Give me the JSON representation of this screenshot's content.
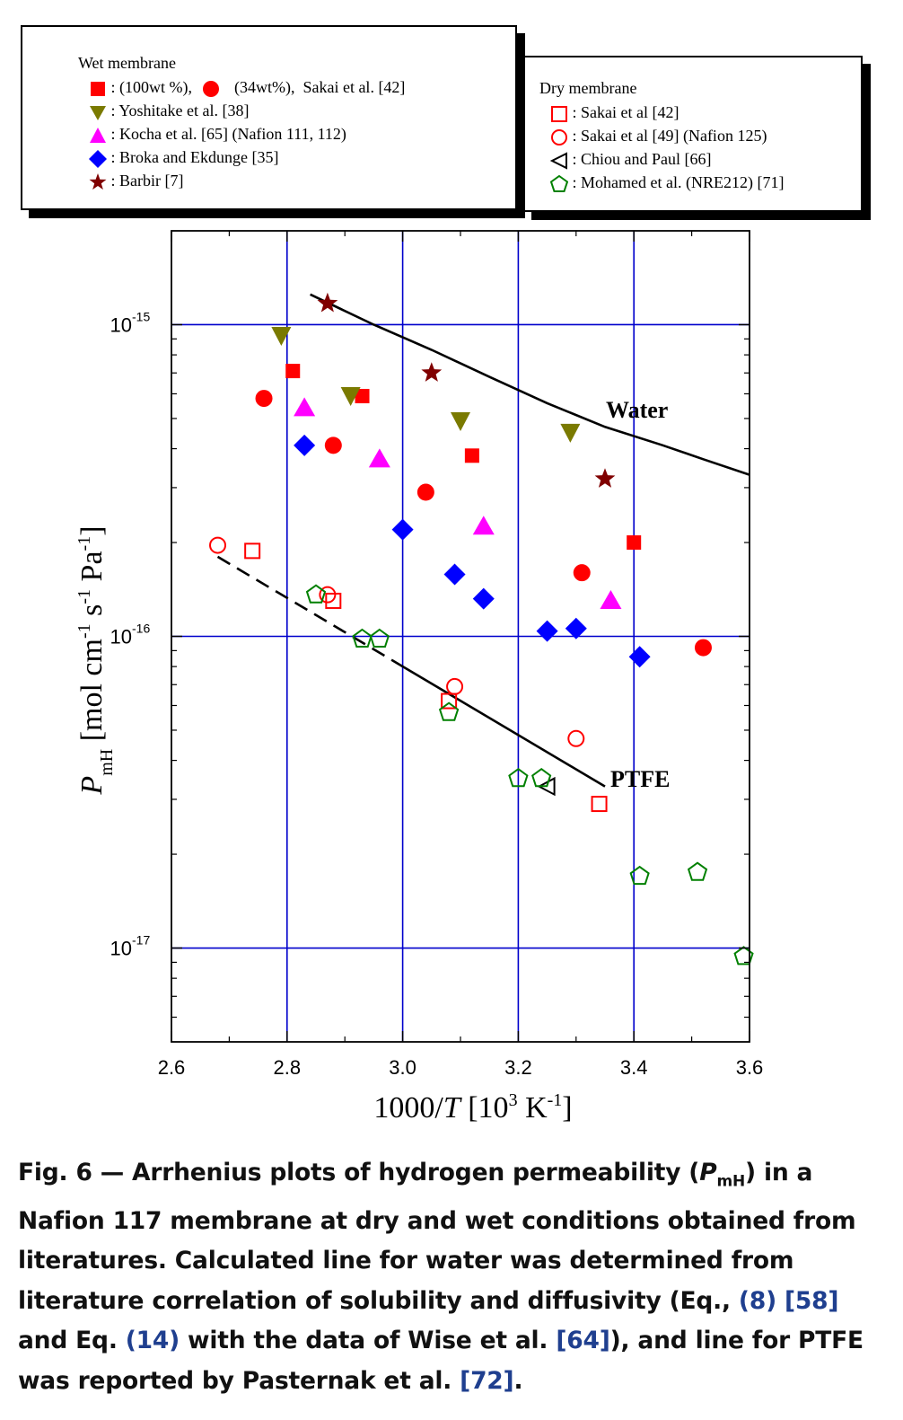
{
  "legend_wet": {
    "title": "Wet membrane",
    "row1_a": ": (100wt %),",
    "row1_b": "(34wt%),  Sakai et al. [42]",
    "row2": ": Yoshitake et al. [38]",
    "row3": ": Kocha et al. [65] (Nafion 111, 112)",
    "row4": ": Broka and Ekdunge [35]",
    "row5": ": Barbir [7]"
  },
  "legend_dry": {
    "title": "Dry membrane",
    "row1": ": Sakai et al [42]",
    "row2": ": Sakai et al [49] (Nafion 125)",
    "row3": ": Chiou and Paul [66]",
    "row4": ": Mohamed et al. (NRE212) [71]"
  },
  "colors": {
    "red": "#ff0000",
    "olive": "#7a7a00",
    "magenta": "#ff00ff",
    "blue": "#0000ff",
    "darkred": "#800000",
    "green": "#008000",
    "grid": "#0000cc"
  },
  "chart_data": {
    "type": "scatter",
    "xlabel": "1000/T  [10^3 K^-1]",
    "ylabel": "P_mH [mol cm^-1 s^-1 Pa^-1]",
    "xlim": [
      2.6,
      3.6
    ],
    "ylim": [
      5e-18,
      2e-15
    ],
    "yscale": "log",
    "grid": true,
    "x_ticks": [
      "2.6",
      "2.8",
      "3.0",
      "3.2",
      "3.4",
      "3.6"
    ],
    "y_ticks": [
      {
        "value": 1e-17,
        "mantissa": "10",
        "exponent": "-17"
      },
      {
        "value": 1e-16,
        "mantissa": "10",
        "exponent": "-16"
      },
      {
        "value": 1e-15,
        "mantissa": "10",
        "exponent": "-15"
      }
    ],
    "series": [
      {
        "name": "Sakai et al. [42] (100wt %)",
        "marker": "square",
        "filled": true,
        "color": "#ff0000",
        "points": [
          [
            2.81,
            7.1e-16
          ],
          [
            2.93,
            5.9e-16
          ],
          [
            3.12,
            3.8e-16
          ],
          [
            3.4,
            2e-16
          ]
        ]
      },
      {
        "name": "Sakai et al. [42] (34wt%)",
        "marker": "circle",
        "filled": true,
        "color": "#ff0000",
        "points": [
          [
            2.76,
            5.8e-16
          ],
          [
            2.88,
            4.1e-16
          ],
          [
            3.04,
            2.9e-16
          ],
          [
            3.31,
            1.6e-16
          ],
          [
            3.52,
            9.2e-17
          ]
        ]
      },
      {
        "name": "Yoshitake et al. [38]",
        "marker": "triangle-down",
        "filled": true,
        "color": "#7a7a00",
        "points": [
          [
            2.79,
            9.2e-16
          ],
          [
            2.91,
            5.9e-16
          ],
          [
            3.1,
            4.9e-16
          ],
          [
            3.29,
            4.5e-16
          ]
        ]
      },
      {
        "name": "Kocha et al. [65] (Nafion 111, 112)",
        "marker": "triangle-up",
        "filled": true,
        "color": "#ff00ff",
        "points": [
          [
            2.83,
            5.4e-16
          ],
          [
            2.96,
            3.7e-16
          ],
          [
            3.14,
            2.25e-16
          ],
          [
            3.36,
            1.3e-16
          ]
        ]
      },
      {
        "name": "Broka and Ekdunge [35]",
        "marker": "diamond",
        "filled": true,
        "color": "#0000ff",
        "points": [
          [
            2.83,
            4.1e-16
          ],
          [
            3.0,
            2.2e-16
          ],
          [
            3.09,
            1.58e-16
          ],
          [
            3.14,
            1.32e-16
          ],
          [
            3.25,
            1.04e-16
          ],
          [
            3.3,
            1.06e-16
          ],
          [
            3.41,
            8.6e-17
          ]
        ]
      },
      {
        "name": "Barbir [7]",
        "marker": "star",
        "filled": true,
        "color": "#800000",
        "points": [
          [
            2.87,
            1.17e-15
          ],
          [
            3.05,
            7e-16
          ],
          [
            3.35,
            3.2e-16
          ]
        ]
      },
      {
        "name": "Sakai et al [42] (dry)",
        "marker": "square",
        "filled": false,
        "color": "#ff0000",
        "points": [
          [
            2.74,
            1.88e-16
          ],
          [
            2.88,
            1.3e-16
          ],
          [
            3.08,
            6.2e-17
          ],
          [
            3.34,
            2.9e-17
          ]
        ]
      },
      {
        "name": "Sakai et al [49] (Nafion 125)",
        "marker": "circle",
        "filled": false,
        "color": "#ff0000",
        "points": [
          [
            2.68,
            1.96e-16
          ],
          [
            2.87,
            1.36e-16
          ],
          [
            3.09,
            6.9e-17
          ],
          [
            3.3,
            4.7e-17
          ]
        ]
      },
      {
        "name": "Chiou and Paul [66]",
        "marker": "triangle-left",
        "filled": false,
        "color": "#000000",
        "points": [
          [
            3.25,
            3.3e-17
          ]
        ]
      },
      {
        "name": "Mohamed et al. (NRE212) [71]",
        "marker": "pentagon",
        "filled": false,
        "color": "#008000",
        "points": [
          [
            2.85,
            1.36e-16
          ],
          [
            2.93,
            9.8e-17
          ],
          [
            2.96,
            9.8e-17
          ],
          [
            3.08,
            5.7e-17
          ],
          [
            3.2,
            3.5e-17
          ],
          [
            3.24,
            3.5e-17
          ],
          [
            3.41,
            1.7e-17
          ],
          [
            3.51,
            1.75e-17
          ],
          [
            3.59,
            9.4e-18
          ]
        ]
      }
    ],
    "lines": [
      {
        "name": "Water",
        "style": "solid",
        "label": "Water",
        "points": [
          [
            2.84,
            1.25e-15
          ],
          [
            2.95,
            1e-15
          ],
          [
            3.05,
            8.3e-16
          ],
          [
            3.15,
            6.8e-16
          ],
          [
            3.25,
            5.6e-16
          ],
          [
            3.35,
            4.7e-16
          ],
          [
            3.45,
            4.1e-16
          ],
          [
            3.52,
            3.7e-16
          ],
          [
            3.6,
            3.3e-16
          ]
        ]
      },
      {
        "name": "PTFE",
        "style": "dashed-to-solid",
        "label": "PTFE",
        "points": [
          [
            2.68,
            1.8e-16
          ],
          [
            3.35,
            3.3e-17
          ]
        ]
      }
    ]
  },
  "caption": {
    "prefix": "Fig. 6 — Arrhenius plots of hydrogen permeability (",
    "sym": "P",
    "sub": "mH",
    "text1": ") in a Nafion 117 membrane at dry and wet conditions obtained from literatures. Calculated line for water was determined from literature correlation of solubility and diffusivity (Eq., ",
    "ref1": "(8)",
    "ref2": "[58]",
    "text2": " and Eq. ",
    "ref3": "(14)",
    "text3": " with the data of Wise et al. ",
    "ref4": "[64]",
    "text4": "), and line for PTFE was reported by Pasternak et al. ",
    "ref5": "[72]",
    "text5": "."
  }
}
